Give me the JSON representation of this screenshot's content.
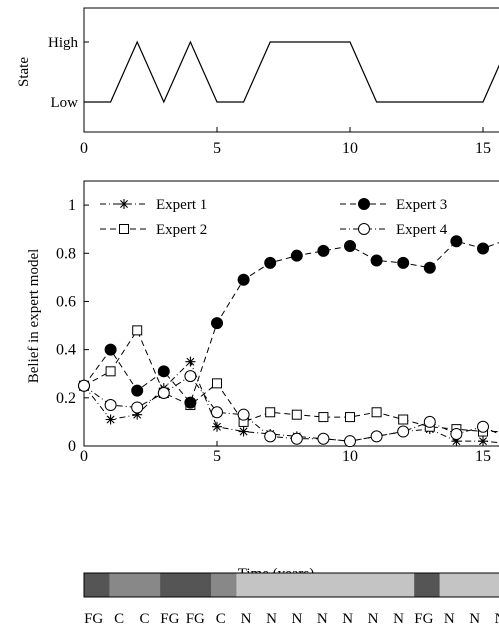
{
  "chart_data": [
    {
      "type": "line",
      "ylabel": "State",
      "x_ticks": [
        0,
        5,
        10,
        15
      ],
      "y_categories": [
        "Low",
        "High"
      ],
      "xlim": [
        0,
        16
      ],
      "series": [
        {
          "x": [
            0,
            1,
            2,
            3,
            4,
            5,
            6,
            7,
            8,
            9,
            10,
            11,
            12,
            13,
            14,
            15,
            16
          ],
          "values": [
            "Low",
            "Low",
            "High",
            "Low",
            "High",
            "Low",
            "Low",
            "High",
            "High",
            "High",
            "High",
            "Low",
            "Low",
            "Low",
            "Low",
            "Low",
            "High"
          ]
        }
      ]
    },
    {
      "type": "line",
      "xlabel": "Time (years)",
      "ylabel": "Belief in expert model",
      "x_ticks": [
        0,
        5,
        10,
        15
      ],
      "y_ticks": [
        "0",
        "0.2",
        "0.4",
        "0.6",
        "0.8",
        "1"
      ],
      "xlim": [
        0,
        16
      ],
      "ylim": [
        0,
        1.1
      ],
      "legend": "top",
      "x": [
        0,
        1,
        2,
        3,
        4,
        5,
        6,
        7,
        8,
        9,
        10,
        11,
        12,
        13,
        14,
        15,
        16
      ],
      "series": [
        {
          "name": "Expert 1",
          "marker": "star",
          "dash": "6,3,1,3",
          "values": [
            0.25,
            0.11,
            0.13,
            0.24,
            0.35,
            0.08,
            0.06,
            0.05,
            0.04,
            0.03,
            0.02,
            0.04,
            0.06,
            0.07,
            0.02,
            0.02,
            0.01
          ]
        },
        {
          "name": "Expert 2",
          "marker": "square",
          "dash": "6,4",
          "values": [
            0.25,
            0.31,
            0.48,
            0.22,
            0.17,
            0.26,
            0.1,
            0.14,
            0.13,
            0.12,
            0.12,
            0.14,
            0.11,
            0.08,
            0.07,
            0.06,
            0.06
          ]
        },
        {
          "name": "Expert 3",
          "marker": "filled-circle",
          "dash": "6,4",
          "values": [
            0.25,
            0.4,
            0.23,
            0.31,
            0.18,
            0.51,
            0.69,
            0.76,
            0.79,
            0.81,
            0.83,
            0.77,
            0.76,
            0.74,
            0.85,
            0.82,
            0.86
          ]
        },
        {
          "name": "Expert 4",
          "marker": "open-circle",
          "dash": "6,3,1,3",
          "values": [
            0.25,
            0.17,
            0.16,
            0.22,
            0.29,
            0.14,
            0.13,
            0.04,
            0.03,
            0.03,
            0.02,
            0.04,
            0.06,
            0.1,
            0.05,
            0.08,
            0.03
          ]
        }
      ]
    },
    {
      "type": "heatmap",
      "labels": [
        "FG",
        "C",
        "C",
        "FG",
        "FG",
        "C",
        "N",
        "N",
        "N",
        "N",
        "N",
        "N",
        "N",
        "FG",
        "N",
        "N",
        "N"
      ],
      "colors": [
        "#555555",
        "#888888",
        "#888888",
        "#555555",
        "#555555",
        "#888888",
        "#c4c4c4",
        "#c4c4c4",
        "#c4c4c4",
        "#c4c4c4",
        "#c4c4c4",
        "#c4c4c4",
        "#c4c4c4",
        "#555555",
        "#c4c4c4",
        "#c4c4c4",
        "#c4c4c4"
      ]
    }
  ]
}
